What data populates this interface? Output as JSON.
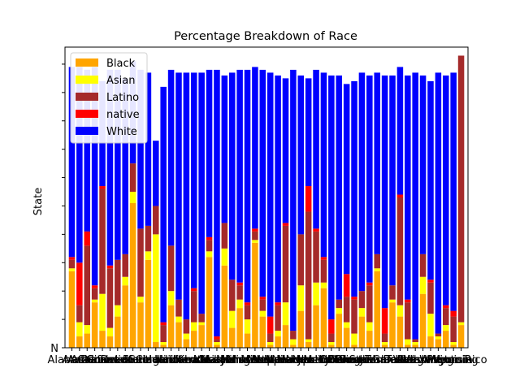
{
  "chart_data": {
    "type": "bar",
    "stacked": true,
    "title": "Percentage Breakdown of Race",
    "xlabel": "",
    "ylabel": "State",
    "y_tick_label": "N",
    "ylim": [
      0,
      1.06
    ],
    "grid": false,
    "legend_placement": "top-left",
    "categories": [
      "Alabama",
      "Alaska",
      "Arizona",
      "Arkansas",
      "California",
      "Colorado",
      "Connecticut",
      "Delaware",
      "District of Columbia",
      "Florida",
      "Georgia",
      "Hawaii",
      "Idaho",
      "Illinois",
      "Indiana",
      "Iowa",
      "Kansas",
      "Kentucky",
      "Louisiana",
      "Maine",
      "Maryland",
      "Massachusetts",
      "Michigan",
      "Minnesota",
      "Mississippi",
      "Missouri",
      "Montana",
      "Nebraska",
      "Nevada",
      "New Hampshire",
      "New Jersey",
      "New Mexico",
      "New York",
      "North Carolina",
      "North Dakota",
      "Ohio",
      "Oklahoma",
      "Oregon",
      "Pennsylvania",
      "Rhode Island",
      "South Carolina",
      "South Dakota",
      "Tennessee",
      "Texas",
      "Utah",
      "Vermont",
      "Virginia",
      "Washington",
      "West Virginia",
      "Wisconsin",
      "Wyoming",
      "Puerto Rico"
    ],
    "visible_tick_labels": {
      "first": "Alabama",
      "last": "Puerto Rico"
    },
    "series": [
      {
        "name": "Black",
        "color": "#ffa500",
        "values": [
          0.27,
          0.04,
          0.05,
          0.16,
          0.06,
          0.04,
          0.11,
          0.22,
          0.51,
          0.16,
          0.31,
          0.02,
          0.01,
          0.15,
          0.09,
          0.03,
          0.06,
          0.08,
          0.32,
          0.01,
          0.29,
          0.07,
          0.14,
          0.05,
          0.37,
          0.11,
          0.01,
          0.04,
          0.08,
          0.01,
          0.13,
          0.02,
          0.15,
          0.21,
          0.01,
          0.12,
          0.07,
          0.01,
          0.11,
          0.06,
          0.27,
          0.01,
          0.16,
          0.11,
          0.01,
          0.01,
          0.19,
          0.04,
          0.03,
          0.06,
          0.01,
          0.08
        ]
      },
      {
        "name": "Asian",
        "color": "#ffff00",
        "values": [
          0.01,
          0.05,
          0.03,
          0.01,
          0.13,
          0.03,
          0.04,
          0.03,
          0.04,
          0.02,
          0.03,
          0.38,
          0.01,
          0.05,
          0.02,
          0.02,
          0.03,
          0.01,
          0.02,
          0.01,
          0.06,
          0.06,
          0.03,
          0.05,
          0.01,
          0.02,
          0.01,
          0.02,
          0.08,
          0.02,
          0.09,
          0.01,
          0.08,
          0.02,
          0.01,
          0.02,
          0.02,
          0.04,
          0.03,
          0.03,
          0.01,
          0.01,
          0.01,
          0.04,
          0.02,
          0.01,
          0.06,
          0.08,
          0.01,
          0.02,
          0.01,
          0.01
        ]
      },
      {
        "name": "Latino",
        "color": "#a52a2a",
        "values": [
          0.03,
          0.06,
          0.28,
          0.04,
          0.37,
          0.21,
          0.16,
          0.08,
          0.1,
          0.24,
          0.09,
          0.1,
          0.06,
          0.16,
          0.06,
          0.05,
          0.11,
          0.03,
          0.04,
          0.01,
          0.09,
          0.11,
          0.05,
          0.05,
          0.03,
          0.04,
          0.03,
          0.09,
          0.27,
          0.03,
          0.18,
          0.45,
          0.18,
          0.08,
          0.03,
          0.03,
          0.09,
          0.12,
          0.06,
          0.13,
          0.05,
          0.03,
          0.05,
          0.38,
          0.13,
          0.01,
          0.08,
          0.11,
          0.01,
          0.06,
          0.09,
          0.94
        ]
      },
      {
        "name": "native",
        "color": "#ff0000",
        "values": [
          0.01,
          0.15,
          0.05,
          0.01,
          0.01,
          0.01,
          0.0,
          0.0,
          0.0,
          0.0,
          0.0,
          0.0,
          0.01,
          0.0,
          0.0,
          0.0,
          0.01,
          0.0,
          0.01,
          0.01,
          0.0,
          0.0,
          0.01,
          0.01,
          0.01,
          0.01,
          0.06,
          0.01,
          0.01,
          0.0,
          0.0,
          0.09,
          0.01,
          0.01,
          0.05,
          0.0,
          0.08,
          0.01,
          0.0,
          0.01,
          0.0,
          0.09,
          0.0,
          0.01,
          0.01,
          0.0,
          0.0,
          0.01,
          0.0,
          0.01,
          0.02,
          0.0
        ]
      },
      {
        "name": "White",
        "color": "#0000ff",
        "values": [
          0.67,
          0.69,
          0.57,
          0.77,
          0.37,
          0.69,
          0.67,
          0.62,
          0.36,
          0.56,
          0.54,
          0.23,
          0.83,
          0.62,
          0.8,
          0.87,
          0.76,
          0.85,
          0.59,
          0.94,
          0.52,
          0.73,
          0.75,
          0.82,
          0.57,
          0.8,
          0.86,
          0.8,
          0.51,
          0.92,
          0.56,
          0.38,
          0.56,
          0.65,
          0.86,
          0.79,
          0.67,
          0.76,
          0.77,
          0.73,
          0.64,
          0.82,
          0.74,
          0.45,
          0.79,
          0.94,
          0.63,
          0.7,
          0.92,
          0.81,
          0.84,
          0.0
        ]
      }
    ]
  }
}
